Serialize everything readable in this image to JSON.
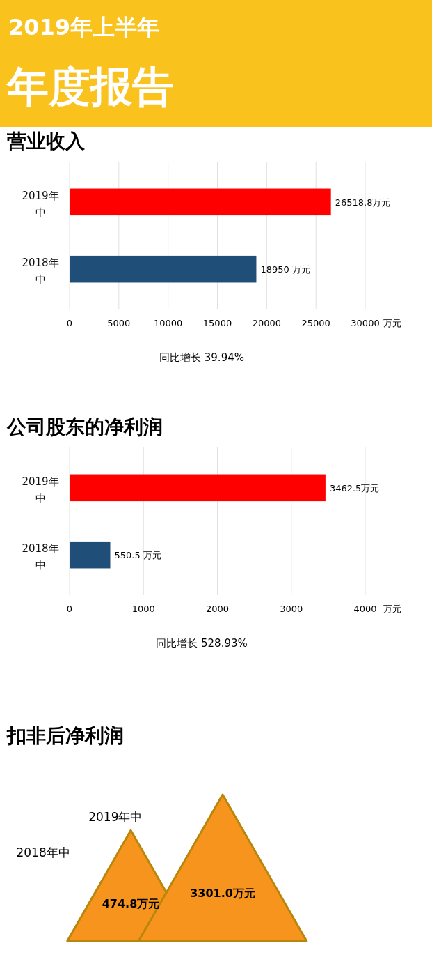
{
  "chart_data": [
    {
      "type": "other",
      "title": "2019年上半年",
      "subtitle": "年度报告"
    },
    {
      "type": "bar",
      "title": "营业收入",
      "orientation": "horizontal",
      "categories": [
        "2019年中",
        "2018年中"
      ],
      "values": [
        26518.8,
        18950
      ],
      "colors": [
        "#ff0000",
        "#1f4e79"
      ],
      "value_labels": [
        "26518.8万元",
        "18950 万元"
      ],
      "xlim": [
        0,
        30000
      ],
      "xticks": [
        0,
        5000,
        10000,
        15000,
        20000,
        25000,
        30000
      ],
      "xlabel": "万元",
      "grid": "x",
      "annotations": [
        "同比增长 39.94%"
      ]
    },
    {
      "type": "bar",
      "title": "公司股东的净利润",
      "orientation": "horizontal",
      "categories": [
        "2019年中",
        "2018年中"
      ],
      "values": [
        3462.5,
        550.5
      ],
      "colors": [
        "#ff0000",
        "#1f4e79"
      ],
      "value_labels": [
        "3462.5万元",
        "550.5 万元"
      ],
      "xlim": [
        0,
        4000
      ],
      "xticks": [
        0,
        1000,
        2000,
        3000,
        4000
      ],
      "xlabel": "万元",
      "grid": "x",
      "annotations": [
        "同比增长 528.93%"
      ]
    },
    {
      "type": "other",
      "title": "扣非后净利润",
      "categories": [
        "2018年中",
        "2019年中"
      ],
      "values": [
        474.8,
        3301.0
      ],
      "colors": [
        "#f7941d",
        "#f7941d"
      ],
      "value_labels": [
        "474.8万元",
        "3301.0万元"
      ]
    }
  ]
}
